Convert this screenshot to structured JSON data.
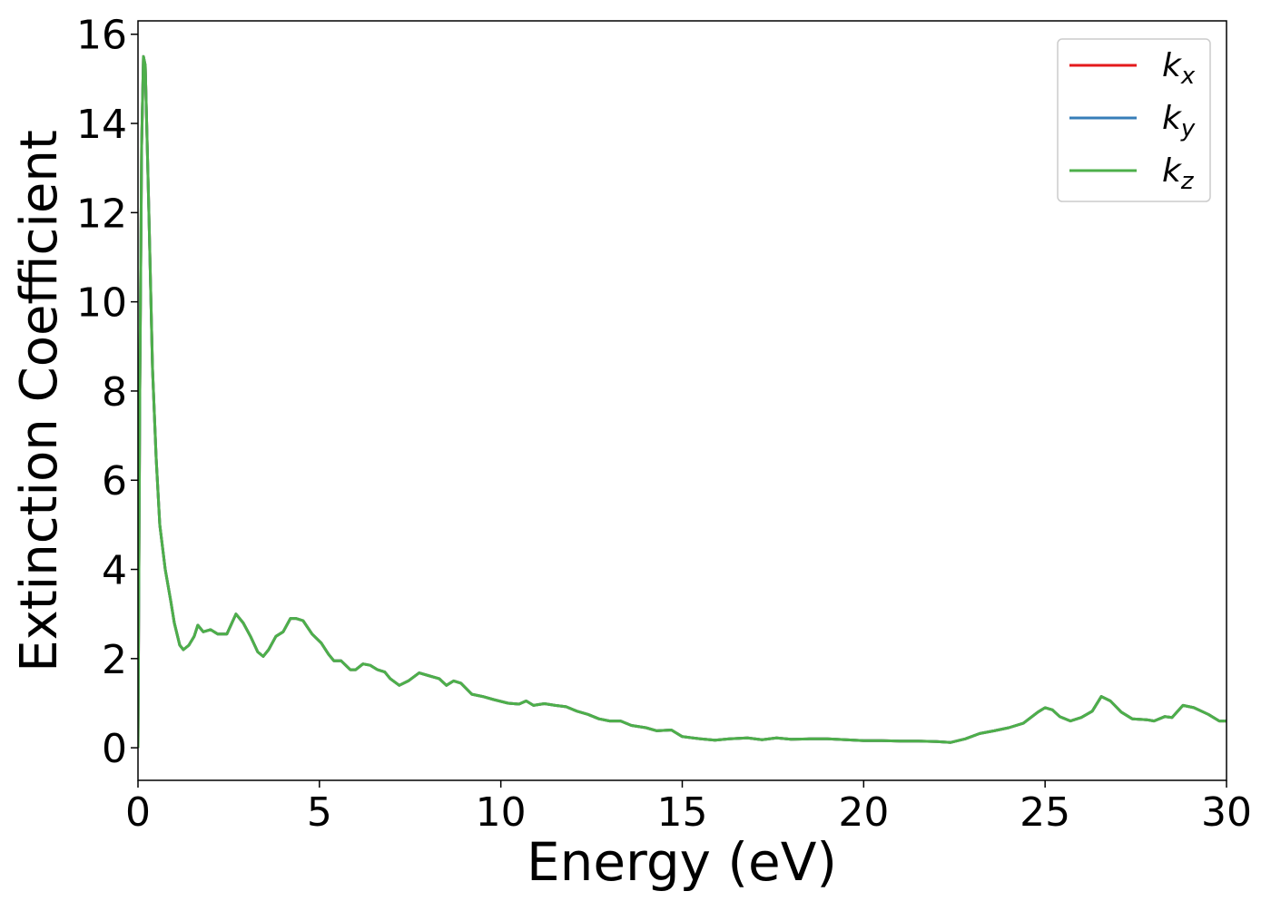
{
  "chart_data": {
    "type": "line",
    "x_label": "Energy (eV)",
    "y_label": "Extinction Coefficient",
    "x": [
      0,
      0.05,
      0.1,
      0.15,
      0.2,
      0.3,
      0.4,
      0.5,
      0.6,
      0.75,
      0.9,
      1.0,
      1.15,
      1.25,
      1.4,
      1.55,
      1.65,
      1.8,
      2.0,
      2.2,
      2.45,
      2.7,
      2.9,
      3.1,
      3.3,
      3.45,
      3.6,
      3.8,
      4.0,
      4.2,
      4.35,
      4.55,
      4.8,
      5.05,
      5.25,
      5.4,
      5.6,
      5.85,
      6.0,
      6.2,
      6.4,
      6.6,
      6.8,
      6.95,
      7.2,
      7.45,
      7.75,
      8.0,
      8.3,
      8.5,
      8.7,
      8.9,
      9.2,
      9.5,
      9.8,
      10.2,
      10.5,
      10.7,
      10.9,
      11.2,
      11.5,
      11.8,
      12.1,
      12.4,
      12.7,
      13.0,
      13.3,
      13.6,
      14.0,
      14.3,
      14.7,
      15.0,
      15.5,
      15.9,
      16.3,
      16.8,
      17.2,
      17.6,
      18.0,
      18.5,
      19.0,
      19.5,
      20.0,
      20.5,
      21.0,
      21.5,
      22.0,
      22.4,
      22.8,
      23.2,
      23.6,
      24.0,
      24.4,
      24.8,
      25.0,
      25.2,
      25.4,
      25.7,
      26.0,
      26.3,
      26.55,
      26.8,
      27.1,
      27.4,
      27.8,
      28.0,
      28.3,
      28.5,
      28.8,
      29.1,
      29.5,
      29.8,
      30
    ],
    "series": [
      {
        "name": "kx",
        "color": "#e41a1c",
        "values": [
          0,
          8,
          13.5,
          15.5,
          15.3,
          12,
          8.5,
          6.5,
          5,
          4,
          3.3,
          2.8,
          2.3,
          2.2,
          2.3,
          2.5,
          2.75,
          2.6,
          2.65,
          2.55,
          2.55,
          3.0,
          2.8,
          2.5,
          2.15,
          2.05,
          2.2,
          2.5,
          2.6,
          2.9,
          2.9,
          2.85,
          2.55,
          2.35,
          2.1,
          1.95,
          1.95,
          1.75,
          1.75,
          1.88,
          1.85,
          1.75,
          1.7,
          1.55,
          1.4,
          1.5,
          1.68,
          1.62,
          1.55,
          1.4,
          1.5,
          1.45,
          1.2,
          1.15,
          1.08,
          1.0,
          0.98,
          1.05,
          0.95,
          0.99,
          0.95,
          0.92,
          0.82,
          0.75,
          0.65,
          0.6,
          0.6,
          0.5,
          0.45,
          0.38,
          0.4,
          0.25,
          0.2,
          0.17,
          0.2,
          0.22,
          0.18,
          0.22,
          0.19,
          0.2,
          0.2,
          0.18,
          0.16,
          0.16,
          0.15,
          0.15,
          0.14,
          0.12,
          0.2,
          0.32,
          0.38,
          0.45,
          0.55,
          0.8,
          0.9,
          0.85,
          0.7,
          0.6,
          0.68,
          0.82,
          1.15,
          1.05,
          0.8,
          0.65,
          0.63,
          0.6,
          0.7,
          0.68,
          0.95,
          0.9,
          0.75,
          0.6,
          0.6
        ]
      },
      {
        "name": "ky",
        "color": "#377eb8",
        "values": [
          0,
          8,
          13.5,
          15.5,
          15.3,
          12,
          8.5,
          6.5,
          5,
          4,
          3.3,
          2.8,
          2.3,
          2.2,
          2.3,
          2.5,
          2.75,
          2.6,
          2.65,
          2.55,
          2.55,
          3.0,
          2.8,
          2.5,
          2.15,
          2.05,
          2.2,
          2.5,
          2.6,
          2.9,
          2.9,
          2.85,
          2.55,
          2.35,
          2.1,
          1.95,
          1.95,
          1.75,
          1.75,
          1.88,
          1.85,
          1.75,
          1.7,
          1.55,
          1.4,
          1.5,
          1.68,
          1.62,
          1.55,
          1.4,
          1.5,
          1.45,
          1.2,
          1.15,
          1.08,
          1.0,
          0.98,
          1.05,
          0.95,
          0.99,
          0.95,
          0.92,
          0.82,
          0.75,
          0.65,
          0.6,
          0.6,
          0.5,
          0.45,
          0.38,
          0.4,
          0.25,
          0.2,
          0.17,
          0.2,
          0.22,
          0.18,
          0.22,
          0.19,
          0.2,
          0.2,
          0.18,
          0.16,
          0.16,
          0.15,
          0.15,
          0.14,
          0.12,
          0.2,
          0.32,
          0.38,
          0.45,
          0.55,
          0.8,
          0.9,
          0.85,
          0.7,
          0.6,
          0.68,
          0.82,
          1.15,
          1.05,
          0.8,
          0.65,
          0.63,
          0.6,
          0.7,
          0.68,
          0.95,
          0.9,
          0.75,
          0.6,
          0.6
        ]
      },
      {
        "name": "kz",
        "color": "#4daf4a",
        "values": [
          0,
          8,
          13.5,
          15.5,
          15.3,
          12,
          8.5,
          6.5,
          5,
          4,
          3.3,
          2.8,
          2.3,
          2.2,
          2.3,
          2.5,
          2.75,
          2.6,
          2.65,
          2.55,
          2.55,
          3.0,
          2.8,
          2.5,
          2.15,
          2.05,
          2.2,
          2.5,
          2.6,
          2.9,
          2.9,
          2.85,
          2.55,
          2.35,
          2.1,
          1.95,
          1.95,
          1.75,
          1.75,
          1.88,
          1.85,
          1.75,
          1.7,
          1.55,
          1.4,
          1.5,
          1.68,
          1.62,
          1.55,
          1.4,
          1.5,
          1.45,
          1.2,
          1.15,
          1.08,
          1.0,
          0.98,
          1.05,
          0.95,
          0.99,
          0.95,
          0.92,
          0.82,
          0.75,
          0.65,
          0.6,
          0.6,
          0.5,
          0.45,
          0.38,
          0.4,
          0.25,
          0.2,
          0.17,
          0.2,
          0.22,
          0.18,
          0.22,
          0.19,
          0.2,
          0.2,
          0.18,
          0.16,
          0.16,
          0.15,
          0.15,
          0.14,
          0.12,
          0.2,
          0.32,
          0.38,
          0.45,
          0.55,
          0.8,
          0.9,
          0.85,
          0.7,
          0.6,
          0.68,
          0.82,
          1.15,
          1.05,
          0.8,
          0.65,
          0.63,
          0.6,
          0.7,
          0.68,
          0.95,
          0.9,
          0.75,
          0.6,
          0.6
        ]
      }
    ],
    "xlim": [
      0,
      30
    ],
    "xticks": [
      0,
      5,
      10,
      15,
      20,
      25,
      30
    ],
    "ylim": [
      -0.73,
      16.3
    ],
    "yticks": [
      0,
      2,
      4,
      6,
      8,
      10,
      12,
      14,
      16
    ],
    "legend": "upper right"
  }
}
